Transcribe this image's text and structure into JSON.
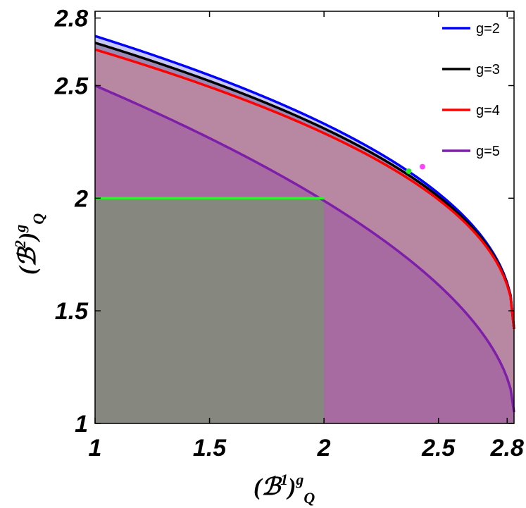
{
  "chart_data": {
    "type": "line",
    "xlabel": {
      "base": "(ℬ",
      "sup": "1",
      "close": ")",
      "sup2": "g",
      "sub": "Q"
    },
    "ylabel": {
      "base": "(ℬ",
      "sup": "2",
      "close": ")",
      "sup2": "g",
      "sub": "Q"
    },
    "xlim": [
      1,
      2.83
    ],
    "ylim": [
      1,
      2.83
    ],
    "xticks": [
      1,
      1.5,
      2,
      2.5,
      2.8
    ],
    "xtick_labels": [
      "1",
      "1.5",
      "2",
      "2.5",
      "2.8"
    ],
    "yticks": [
      1,
      1.5,
      2,
      2.5,
      2.8
    ],
    "ytick_labels": [
      "1",
      "1.5",
      "2",
      "2.5",
      "2.8"
    ],
    "legend_position": "top-right",
    "series": [
      {
        "name": "g=2",
        "color": "#0000ff",
        "fill": "#c8c8f5",
        "start": [
          1.0,
          2.72
        ],
        "end": [
          2.83,
          1.42
        ],
        "exp": 0.45
      },
      {
        "name": "g=3",
        "color": "#000000",
        "fill": "#9a8ab8",
        "start": [
          1.0,
          2.69
        ],
        "end": [
          2.83,
          1.42
        ],
        "exp": 0.45
      },
      {
        "name": "g=4",
        "color": "#ff0000",
        "fill": "#b887a2",
        "start": [
          1.0,
          2.66
        ],
        "end": [
          2.83,
          1.42
        ],
        "exp": 0.45
      },
      {
        "name": "g=5",
        "color": "#7d1fa8",
        "fill": "#a86ba1",
        "start": [
          1.0,
          2.5
        ],
        "end": [
          2.83,
          1.05
        ],
        "exp": 0.55
      }
    ],
    "shaded_box": {
      "x": [
        1,
        2
      ],
      "y": [
        1,
        2
      ],
      "fill": "#86877f"
    },
    "green_line": {
      "x": [
        1,
        2
      ],
      "y": 2.0,
      "color": "#33ee33"
    },
    "points": [
      {
        "x": 2.37,
        "y": 2.12,
        "color": "#22ee22"
      },
      {
        "x": 2.43,
        "y": 2.14,
        "color": "#ff44ff"
      }
    ]
  }
}
